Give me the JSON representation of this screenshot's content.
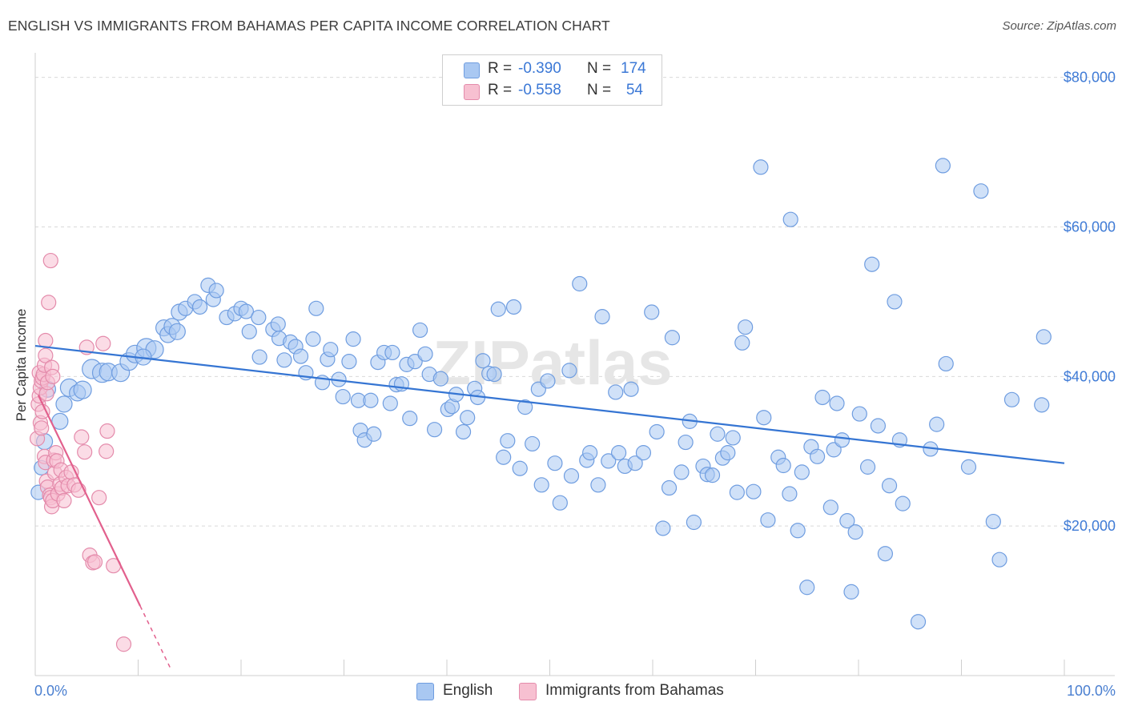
{
  "title": "ENGLISH VS IMMIGRANTS FROM BAHAMAS PER CAPITA INCOME CORRELATION CHART",
  "source": "Source: ZipAtlas.com",
  "watermark": "ZIPatlas",
  "legend": {
    "rows": [
      {
        "r_label": "R =",
        "r_value": "-0.390",
        "n_label": "N =",
        "n_value": "174",
        "color": "#a9c8f2",
        "stroke": "#6f9de0"
      },
      {
        "r_label": "R =",
        "r_value": "-0.558",
        "n_label": "N =",
        "n_value": "54",
        "color": "#f7c0d1",
        "stroke": "#e48bab"
      }
    ]
  },
  "bottom_legend": [
    {
      "label": "English",
      "color": "#a9c8f2",
      "stroke": "#6f9de0"
    },
    {
      "label": "Immigrants from Bahamas",
      "color": "#f7c0d1",
      "stroke": "#e48bab"
    }
  ],
  "y_axis_label": "Per Capita Income",
  "x_tick_left": "0.0%",
  "x_tick_right": "100.0%",
  "colors": {
    "blue": "#3575d3",
    "pink": "#e2608d",
    "grid": "#d9d9d9",
    "tick_text": "#3f7bd6"
  },
  "chart_data": {
    "type": "scatter",
    "title": "ENGLISH VS IMMIGRANTS FROM BAHAMAS PER CAPITA INCOME CORRELATION CHART",
    "xlabel": "",
    "ylabel": "Per Capita Income",
    "xlim": [
      0,
      100
    ],
    "ylim": [
      0,
      80000
    ],
    "y_ticks": [
      {
        "value": 20000,
        "label": "$20,000"
      },
      {
        "value": 40000,
        "label": "$40,000"
      },
      {
        "value": 60000,
        "label": "$60,000"
      },
      {
        "value": 80000,
        "label": "$80,000"
      }
    ],
    "grid": "horizontal dashed",
    "legend_position": "top-center",
    "series": [
      {
        "name": "English",
        "color": "#a9c8f2",
        "stroke": "#6f9de0",
        "trend": {
          "x": [
            0,
            100
          ],
          "y": [
            44100,
            28400
          ],
          "color": "#3575d3"
        },
        "points": [
          [
            0.3,
            24500,
            9
          ],
          [
            0.6,
            27800,
            9
          ],
          [
            0.9,
            31300,
            10
          ],
          [
            1.2,
            38300,
            10
          ],
          [
            2.4,
            34000,
            10
          ],
          [
            2.8,
            36300,
            10
          ],
          [
            3.3,
            38500,
            11
          ],
          [
            4.1,
            37800,
            10
          ],
          [
            4.6,
            38200,
            11
          ],
          [
            5.5,
            41000,
            12
          ],
          [
            6.5,
            40500,
            12
          ],
          [
            7.1,
            40600,
            11
          ],
          [
            8.3,
            40500,
            11
          ],
          [
            9.1,
            42000,
            11
          ],
          [
            9.7,
            43000,
            11
          ],
          [
            10.8,
            43800,
            12
          ],
          [
            11.6,
            43600,
            11
          ],
          [
            10.5,
            42600,
            10
          ],
          [
            12.5,
            46500,
            10
          ],
          [
            12.9,
            45600,
            10
          ],
          [
            13.3,
            46700,
            10
          ],
          [
            13.8,
            46000,
            10
          ],
          [
            14.0,
            48600,
            10
          ],
          [
            14.6,
            49100,
            9
          ],
          [
            15.5,
            50000,
            9
          ],
          [
            16.0,
            49300,
            9
          ],
          [
            16.8,
            52200,
            9
          ],
          [
            17.3,
            50300,
            9
          ],
          [
            17.6,
            51500,
            9
          ],
          [
            18.6,
            47900,
            9
          ],
          [
            19.4,
            48400,
            9
          ],
          [
            20.0,
            49100,
            9
          ],
          [
            20.5,
            48700,
            9
          ],
          [
            20.8,
            46000,
            9
          ],
          [
            21.7,
            47900,
            9
          ],
          [
            21.8,
            42600,
            9
          ],
          [
            23.1,
            46300,
            9
          ],
          [
            23.6,
            47000,
            9
          ],
          [
            23.7,
            45100,
            9
          ],
          [
            24.2,
            42200,
            9
          ],
          [
            24.8,
            44600,
            9
          ],
          [
            25.3,
            44000,
            9
          ],
          [
            25.8,
            42700,
            9
          ],
          [
            26.3,
            40500,
            9
          ],
          [
            27.0,
            45000,
            9
          ],
          [
            27.3,
            49100,
            9
          ],
          [
            27.9,
            39200,
            9
          ],
          [
            28.4,
            42300,
            9
          ],
          [
            28.7,
            43600,
            9
          ],
          [
            29.5,
            39600,
            9
          ],
          [
            29.9,
            37300,
            9
          ],
          [
            30.5,
            42000,
            9
          ],
          [
            30.9,
            45000,
            9
          ],
          [
            31.4,
            36800,
            9
          ],
          [
            31.6,
            32800,
            9
          ],
          [
            32.0,
            31500,
            9
          ],
          [
            32.6,
            36800,
            9
          ],
          [
            32.9,
            32300,
            9
          ],
          [
            33.3,
            41900,
            9
          ],
          [
            33.9,
            43200,
            9
          ],
          [
            34.5,
            36400,
            9
          ],
          [
            34.7,
            43200,
            9
          ],
          [
            35.1,
            38900,
            9
          ],
          [
            35.6,
            39000,
            9
          ],
          [
            36.1,
            41600,
            9
          ],
          [
            36.4,
            34400,
            9
          ],
          [
            36.9,
            42000,
            9
          ],
          [
            37.4,
            46200,
            9
          ],
          [
            37.9,
            43000,
            9
          ],
          [
            38.3,
            40300,
            9
          ],
          [
            38.8,
            32900,
            9
          ],
          [
            39.4,
            39700,
            9
          ],
          [
            40.1,
            35600,
            9
          ],
          [
            40.5,
            36000,
            9
          ],
          [
            40.9,
            37600,
            9
          ],
          [
            41.6,
            32600,
            9
          ],
          [
            42.0,
            34500,
            9
          ],
          [
            42.7,
            38400,
            9
          ],
          [
            43.0,
            37200,
            9
          ],
          [
            43.5,
            42100,
            9
          ],
          [
            44.1,
            40400,
            9
          ],
          [
            44.6,
            40300,
            9
          ],
          [
            45.0,
            49000,
            9
          ],
          [
            45.5,
            29200,
            9
          ],
          [
            45.9,
            31400,
            9
          ],
          [
            46.5,
            49300,
            9
          ],
          [
            47.1,
            27700,
            9
          ],
          [
            47.6,
            35900,
            9
          ],
          [
            48.3,
            31000,
            9
          ],
          [
            48.9,
            38300,
            9
          ],
          [
            49.2,
            25500,
            9
          ],
          [
            49.8,
            39400,
            9
          ],
          [
            50.5,
            28400,
            9
          ],
          [
            51.0,
            23100,
            9
          ],
          [
            51.9,
            40800,
            9
          ],
          [
            52.1,
            26700,
            9
          ],
          [
            52.9,
            52400,
            9
          ],
          [
            53.6,
            28800,
            9
          ],
          [
            53.9,
            29800,
            9
          ],
          [
            54.7,
            25500,
            9
          ],
          [
            55.1,
            48000,
            9
          ],
          [
            55.7,
            28700,
            9
          ],
          [
            56.4,
            37900,
            9
          ],
          [
            56.7,
            29800,
            9
          ],
          [
            57.3,
            28000,
            9
          ],
          [
            57.9,
            38300,
            9
          ],
          [
            58.3,
            28400,
            9
          ],
          [
            59.1,
            29800,
            9
          ],
          [
            59.9,
            48600,
            9
          ],
          [
            60.4,
            32600,
            9
          ],
          [
            61.0,
            19700,
            9
          ],
          [
            61.6,
            25100,
            9
          ],
          [
            61.9,
            45200,
            9
          ],
          [
            62.8,
            27200,
            9
          ],
          [
            63.2,
            31200,
            9
          ],
          [
            63.6,
            34000,
            9
          ],
          [
            64.0,
            20500,
            9
          ],
          [
            64.9,
            28000,
            9
          ],
          [
            65.3,
            26900,
            9
          ],
          [
            65.8,
            26800,
            9
          ],
          [
            66.3,
            32300,
            9
          ],
          [
            66.8,
            29100,
            9
          ],
          [
            67.3,
            29800,
            9
          ],
          [
            67.8,
            31800,
            9
          ],
          [
            68.2,
            24500,
            9
          ],
          [
            68.7,
            44500,
            9
          ],
          [
            69.0,
            46600,
            9
          ],
          [
            69.8,
            24600,
            9
          ],
          [
            70.8,
            34500,
            9
          ],
          [
            71.2,
            20800,
            9
          ],
          [
            72.2,
            29200,
            9
          ],
          [
            72.7,
            28100,
            9
          ],
          [
            73.3,
            24300,
            9
          ],
          [
            74.1,
            19400,
            9
          ],
          [
            74.5,
            27200,
            9
          ],
          [
            75.0,
            11800,
            9
          ],
          [
            75.4,
            30600,
            9
          ],
          [
            76.0,
            29300,
            9
          ],
          [
            76.5,
            37200,
            9
          ],
          [
            77.3,
            22500,
            9
          ],
          [
            77.6,
            30200,
            9
          ],
          [
            77.9,
            36400,
            9
          ],
          [
            78.4,
            31500,
            9
          ],
          [
            78.9,
            20700,
            9
          ],
          [
            79.3,
            11200,
            9
          ],
          [
            79.7,
            19200,
            9
          ],
          [
            80.1,
            35000,
            9
          ],
          [
            80.9,
            27900,
            9
          ],
          [
            81.3,
            55000,
            9
          ],
          [
            81.9,
            33400,
            9
          ],
          [
            82.6,
            16300,
            9
          ],
          [
            83.0,
            25400,
            9
          ],
          [
            83.5,
            50000,
            9
          ],
          [
            84.0,
            31500,
            9
          ],
          [
            84.3,
            23000,
            9
          ],
          [
            85.8,
            7200,
            9
          ],
          [
            87.0,
            30300,
            9
          ],
          [
            87.6,
            33600,
            9
          ],
          [
            88.5,
            41700,
            9
          ],
          [
            90.7,
            27900,
            9
          ],
          [
            91.9,
            64800,
            9
          ],
          [
            93.1,
            20600,
            9
          ],
          [
            93.7,
            15500,
            9
          ],
          [
            94.9,
            36900,
            9
          ],
          [
            97.8,
            36200,
            9
          ],
          [
            98.0,
            45300,
            9
          ],
          [
            70.5,
            68000,
            9
          ],
          [
            73.4,
            61000,
            9
          ],
          [
            88.2,
            68200,
            9
          ]
        ]
      },
      {
        "name": "Immigrants from Bahamas",
        "color": "#f7c0d1",
        "stroke": "#e48bab",
        "trend": {
          "x": [
            0.3,
            10.2
          ],
          "y": [
            37500,
            9300
          ],
          "color": "#e2608d",
          "dash_x": [
            10.2,
            13.2
          ],
          "dash_y": [
            9300,
            800
          ]
        },
        "points": [
          [
            0.2,
            31700,
            9
          ],
          [
            0.3,
            36300,
            9
          ],
          [
            0.4,
            37400,
            9
          ],
          [
            0.5,
            38500,
            9
          ],
          [
            0.4,
            40500,
            9
          ],
          [
            0.6,
            39400,
            9
          ],
          [
            0.7,
            39800,
            9
          ],
          [
            0.8,
            40300,
            9
          ],
          [
            0.5,
            33800,
            9
          ],
          [
            0.6,
            33100,
            9
          ],
          [
            0.9,
            41500,
            9
          ],
          [
            1.0,
            44800,
            9
          ],
          [
            1.0,
            42800,
            9
          ],
          [
            1.1,
            37700,
            9
          ],
          [
            1.2,
            39200,
            9
          ],
          [
            1.3,
            49900,
            9
          ],
          [
            1.5,
            55500,
            9
          ],
          [
            1.6,
            41200,
            9
          ],
          [
            1.7,
            40000,
            9
          ],
          [
            0.9,
            29300,
            9
          ],
          [
            1.0,
            28500,
            9
          ],
          [
            1.1,
            26000,
            9
          ],
          [
            1.2,
            25200,
            9
          ],
          [
            1.4,
            24100,
            9
          ],
          [
            1.5,
            23800,
            9
          ],
          [
            1.6,
            22600,
            9
          ],
          [
            1.7,
            23400,
            9
          ],
          [
            1.8,
            28800,
            9
          ],
          [
            1.9,
            27100,
            9
          ],
          [
            2.0,
            29800,
            9
          ],
          [
            2.1,
            28700,
            9
          ],
          [
            2.2,
            24300,
            9
          ],
          [
            2.4,
            25600,
            9
          ],
          [
            2.5,
            27500,
            9
          ],
          [
            2.6,
            25100,
            9
          ],
          [
            2.8,
            23400,
            9
          ],
          [
            3.0,
            26500,
            9
          ],
          [
            3.2,
            25400,
            9
          ],
          [
            3.5,
            27200,
            9
          ],
          [
            3.8,
            25500,
            9
          ],
          [
            4.2,
            24800,
            9
          ],
          [
            4.5,
            31900,
            9
          ],
          [
            4.8,
            29900,
            9
          ],
          [
            5.0,
            43900,
            9
          ],
          [
            5.3,
            16100,
            9
          ],
          [
            5.6,
            15100,
            9
          ],
          [
            5.8,
            15200,
            9
          ],
          [
            6.2,
            23800,
            9
          ],
          [
            6.6,
            44400,
            9
          ],
          [
            7.0,
            32700,
            9
          ],
          [
            6.9,
            30000,
            9
          ],
          [
            7.6,
            14700,
            9
          ],
          [
            8.6,
            4200,
            9
          ],
          [
            0.7,
            35300,
            9
          ]
        ]
      }
    ]
  }
}
